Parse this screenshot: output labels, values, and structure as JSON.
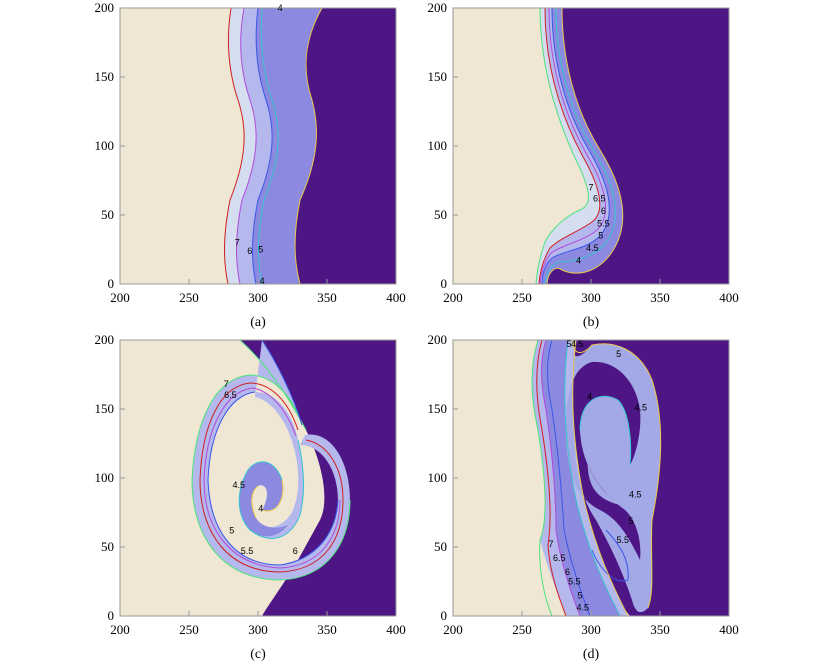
{
  "colors": {
    "light_region": "#F0E6D4",
    "dark_region": "#4E1585",
    "band_light": "#D5DDF0",
    "band_lavender": "#B4B8EC",
    "band_mid": "#8C8AE0",
    "band_periwinkle": "#A3A9E6",
    "contour_7": "#4DE37A",
    "contour_6_5": "#D11E1E",
    "contour_6": "#B14BD8",
    "contour_5_5": "#3A55E8",
    "contour_5": "#37C3CF",
    "contour_4": "#E8C94A",
    "frame": "#9A9A9A"
  },
  "chart_data": [
    {
      "type": "contour",
      "caption": "(a)",
      "xlim": [
        200,
        400
      ],
      "ylim": [
        0,
        200
      ],
      "xticks": [
        "200",
        "250",
        "300",
        "350",
        "400"
      ],
      "yticks": [
        "0",
        "50",
        "100",
        "150",
        "200"
      ],
      "contour_labels": [
        {
          "text": "7",
          "x": 285,
          "y": 30
        },
        {
          "text": "6",
          "x": 294,
          "y": 24
        },
        {
          "text": "5",
          "x": 302,
          "y": 25
        },
        {
          "text": "4",
          "x": 303,
          "y": 2
        },
        {
          "text": "4",
          "x": 316,
          "y": 200
        }
      ]
    },
    {
      "type": "contour",
      "caption": "(b)",
      "xlim": [
        200,
        400
      ],
      "ylim": [
        0,
        200
      ],
      "xticks": [
        "200",
        "250",
        "300",
        "350",
        "400"
      ],
      "yticks": [
        "0",
        "50",
        "100",
        "150",
        "200"
      ],
      "contour_labels": [
        {
          "text": "7",
          "x": 300,
          "y": 70
        },
        {
          "text": "6.5",
          "x": 306,
          "y": 62
        },
        {
          "text": "6",
          "x": 309,
          "y": 53
        },
        {
          "text": "5.5",
          "x": 309,
          "y": 44
        },
        {
          "text": "5",
          "x": 307,
          "y": 35
        },
        {
          "text": "4.5",
          "x": 301,
          "y": 26
        },
        {
          "text": "4",
          "x": 291,
          "y": 17
        }
      ]
    },
    {
      "type": "contour",
      "caption": "(c)",
      "xlim": [
        200,
        400
      ],
      "ylim": [
        0,
        200
      ],
      "xticks": [
        "200",
        "250",
        "300",
        "350",
        "400"
      ],
      "yticks": [
        "0",
        "50",
        "100",
        "150",
        "200"
      ],
      "contour_labels": [
        {
          "text": "7",
          "x": 277,
          "y": 168
        },
        {
          "text": "6.5",
          "x": 280,
          "y": 160
        },
        {
          "text": "4.5",
          "x": 286,
          "y": 95
        },
        {
          "text": "4",
          "x": 302,
          "y": 78
        },
        {
          "text": "5",
          "x": 281,
          "y": 62
        },
        {
          "text": "5.5",
          "x": 292,
          "y": 47
        },
        {
          "text": "6",
          "x": 327,
          "y": 47
        }
      ]
    },
    {
      "type": "contour",
      "caption": "(d)",
      "xlim": [
        200,
        400
      ],
      "ylim": [
        0,
        200
      ],
      "xticks": [
        "200",
        "250",
        "300",
        "350",
        "400"
      ],
      "yticks": [
        "0",
        "50",
        "100",
        "150",
        "200"
      ],
      "contour_labels": [
        {
          "text": "5",
          "x": 284,
          "y": 197
        },
        {
          "text": "4.5",
          "x": 290,
          "y": 197
        },
        {
          "text": "5",
          "x": 320,
          "y": 190
        },
        {
          "text": "4",
          "x": 299,
          "y": 159
        },
        {
          "text": "4.5",
          "x": 336,
          "y": 151
        },
        {
          "text": "4.5",
          "x": 332,
          "y": 88
        },
        {
          "text": "5",
          "x": 329,
          "y": 69
        },
        {
          "text": "5.5",
          "x": 323,
          "y": 55
        },
        {
          "text": "7",
          "x": 271,
          "y": 52
        },
        {
          "text": "6.5",
          "x": 277,
          "y": 42
        },
        {
          "text": "6",
          "x": 283,
          "y": 32
        },
        {
          "text": "5.5",
          "x": 288,
          "y": 25
        },
        {
          "text": "5",
          "x": 292,
          "y": 15
        },
        {
          "text": "4.5",
          "x": 294,
          "y": 6
        }
      ]
    }
  ]
}
